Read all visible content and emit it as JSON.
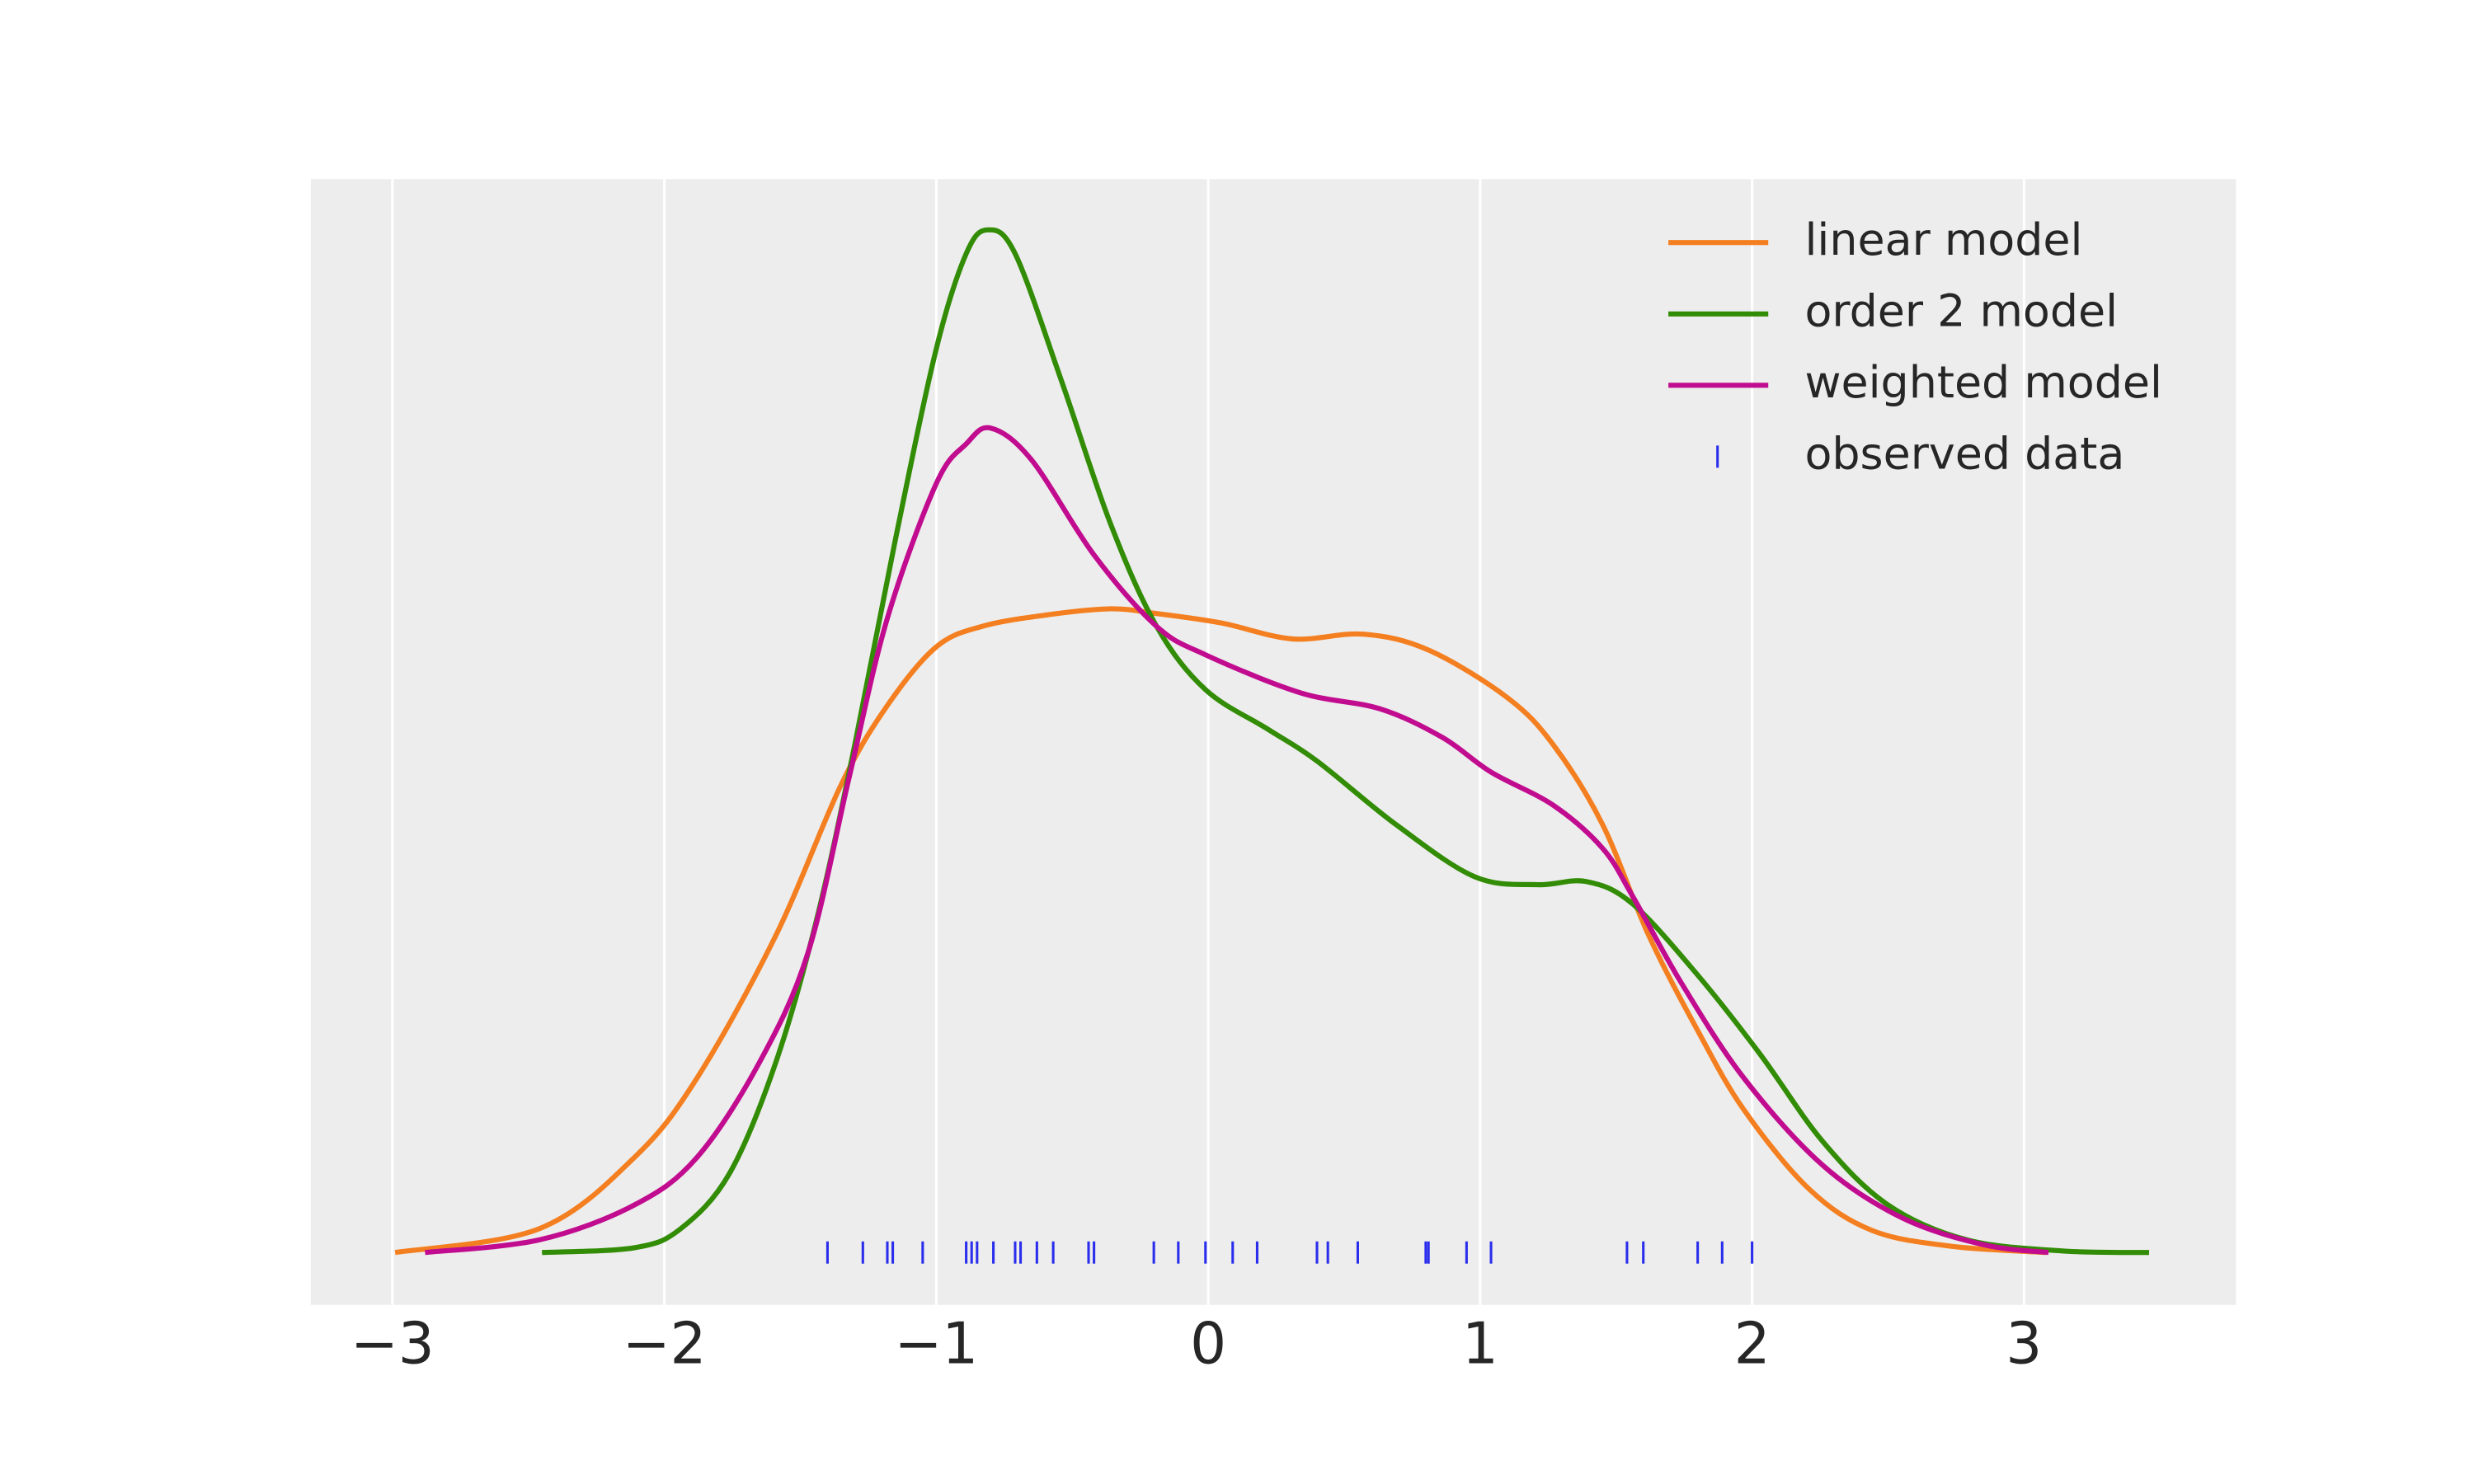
{
  "chart_data": {
    "type": "kde",
    "xlim": [
      -3.3,
      3.78
    ],
    "ylim": [
      -0.033,
      0.677
    ],
    "xticks": [
      {
        "value": -3,
        "label": "−3"
      },
      {
        "value": -2,
        "label": "−2"
      },
      {
        "value": -1,
        "label": "−1"
      },
      0,
      1,
      2,
      3
    ],
    "grid": true,
    "legend": "upper right",
    "series": [
      {
        "name": "linear model",
        "color": "#f47f20",
        "x": [
          -2.99,
          -2.46,
          -2.11,
          -1.88,
          -1.59,
          -1.35,
          -1.18,
          -1.0,
          -0.83,
          -0.6,
          -0.36,
          -0.19,
          0.05,
          0.31,
          0.57,
          0.81,
          1.1,
          1.27,
          1.45,
          1.62,
          1.8,
          1.97,
          2.21,
          2.44,
          2.73,
          3.08
        ],
        "values": [
          0.0,
          0.015,
          0.06,
          0.11,
          0.2,
          0.295,
          0.345,
          0.382,
          0.395,
          0.402,
          0.406,
          0.403,
          0.397,
          0.387,
          0.39,
          0.38,
          0.35,
          0.32,
          0.27,
          0.2,
          0.14,
          0.09,
          0.04,
          0.014,
          0.004,
          0.0
        ]
      },
      {
        "name": "order 2 model",
        "color": "#328c06",
        "x": [
          -2.45,
          -2.11,
          -1.94,
          -1.76,
          -1.59,
          -1.44,
          -1.3,
          -1.15,
          -1.0,
          -0.89,
          -0.81,
          -0.71,
          -0.54,
          -0.36,
          -0.19,
          -0.01,
          0.22,
          0.4,
          0.69,
          0.98,
          1.21,
          1.39,
          1.56,
          1.8,
          2.03,
          2.26,
          2.5,
          2.79,
          3.14,
          3.46
        ],
        "values": [
          0.0,
          0.003,
          0.015,
          0.05,
          0.12,
          0.21,
          0.32,
          0.45,
          0.57,
          0.63,
          0.645,
          0.63,
          0.55,
          0.46,
          0.395,
          0.355,
          0.33,
          0.31,
          0.27,
          0.237,
          0.232,
          0.234,
          0.22,
          0.175,
          0.125,
          0.07,
          0.03,
          0.008,
          0.001,
          0.0
        ]
      },
      {
        "name": "weighted model",
        "color": "#c10c90",
        "x": [
          -2.88,
          -2.46,
          -2.11,
          -1.88,
          -1.65,
          -1.47,
          -1.32,
          -1.18,
          -1.0,
          -0.89,
          -0.8,
          -0.65,
          -0.42,
          -0.19,
          -0.01,
          0.34,
          0.63,
          0.86,
          1.04,
          1.27,
          1.45,
          1.56,
          1.74,
          1.97,
          2.26,
          2.55,
          2.85,
          3.09
        ],
        "values": [
          0.0,
          0.008,
          0.03,
          0.06,
          0.12,
          0.19,
          0.3,
          0.4,
          0.485,
          0.51,
          0.52,
          0.5,
          0.44,
          0.395,
          0.377,
          0.353,
          0.343,
          0.325,
          0.303,
          0.282,
          0.255,
          0.225,
          0.17,
          0.11,
          0.055,
          0.022,
          0.005,
          0.0
        ]
      }
    ],
    "rug": {
      "name": "observed data",
      "color": "#2a2eec",
      "x": [
        -1.4,
        -1.27,
        -1.18,
        -1.16,
        -1.05,
        -0.89,
        -0.87,
        -0.85,
        -0.79,
        -0.71,
        -0.69,
        -0.63,
        -0.57,
        -0.44,
        -0.42,
        -0.2,
        -0.11,
        -0.01,
        0.09,
        0.18,
        0.4,
        0.44,
        0.55,
        0.8,
        0.81,
        0.95,
        1.04,
        1.54,
        1.6,
        1.8,
        1.89,
        2.0
      ]
    }
  }
}
